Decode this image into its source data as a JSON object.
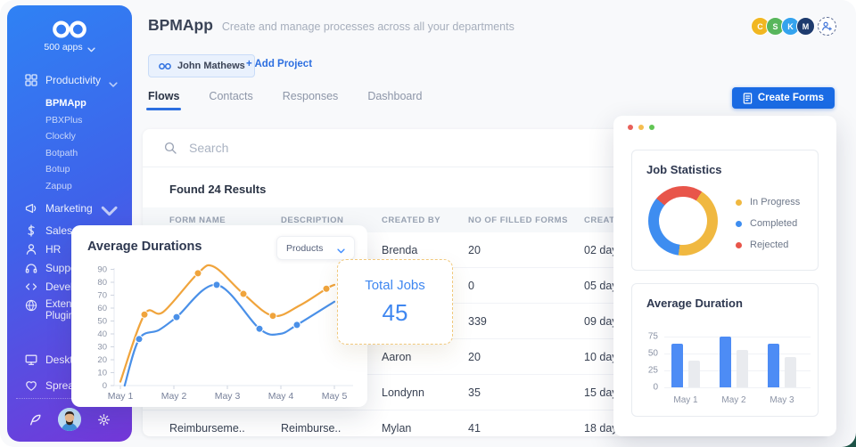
{
  "window": {
    "header": {
      "title": "BPMApp",
      "subtitle": "Create and manage processes across all your departments"
    },
    "members": {
      "avatars": [
        {
          "initial": "C",
          "color": "#f1b722"
        },
        {
          "initial": "S",
          "color": "#58b65c"
        },
        {
          "initial": "K",
          "color": "#34a3ee"
        },
        {
          "initial": "M",
          "color": "#1e3b6e"
        }
      ]
    },
    "owner_chip": {
      "label": "John Mathews"
    },
    "add_project_label": "+ Add Project",
    "tabs": [
      {
        "label": "Flows",
        "active": true
      },
      {
        "label": "Contacts",
        "active": false
      },
      {
        "label": "Responses",
        "active": false
      },
      {
        "label": "Dashboard",
        "active": false
      }
    ],
    "create_forms_label": "Create Forms"
  },
  "sidebar": {
    "apps_label": "500 apps",
    "items": [
      {
        "label": "Productivity",
        "icon": "productivity-icon",
        "chevron": true,
        "children": [
          {
            "label": "BPMApp",
            "active": true
          },
          {
            "label": "PBXPlus",
            "active": false
          },
          {
            "label": "Clockly",
            "active": false
          },
          {
            "label": "Botpath",
            "active": false
          },
          {
            "label": "Botup",
            "active": false
          },
          {
            "label": "Zapup",
            "active": false
          }
        ]
      },
      {
        "label": "Marketing",
        "icon": "marketing-icon",
        "chevron": true
      },
      {
        "label": "Sales",
        "icon": "sales-icon"
      },
      {
        "label": "HR",
        "icon": "hr-icon"
      },
      {
        "label": "Support",
        "icon": "support-icon"
      },
      {
        "label": "Developers",
        "icon": "developers-icon"
      },
      {
        "label": "Extensions Plugins",
        "icon": "extensions-icon",
        "two_line": true
      },
      {
        "label": "Desktop",
        "icon": "desktop-icon",
        "gap": "large"
      },
      {
        "label": "Spreadsheet",
        "icon": "spreadsheet-icon",
        "gap": "small"
      }
    ]
  },
  "search": {
    "placeholder": "Search"
  },
  "results_title": "Found 24 Results",
  "table": {
    "columns": [
      "FORM NAME",
      "DESCRIPTION",
      "CREATED BY",
      "NO OF FILLED FORMS",
      "CREATED"
    ],
    "rows": [
      {
        "form_name": "",
        "description": "",
        "created_by": "Brenda",
        "filled_forms": "20",
        "created": "02 days"
      },
      {
        "form_name": "",
        "description": "",
        "created_by": "",
        "filled_forms": "0",
        "created": "05 days"
      },
      {
        "form_name": "",
        "description": "",
        "created_by": "",
        "filled_forms": "339",
        "created": "09 days"
      },
      {
        "form_name": "",
        "description": "",
        "created_by": "Aaron",
        "filled_forms": "20",
        "created": "10 days"
      },
      {
        "form_name": "",
        "description": "",
        "created_by": "Londynn",
        "filled_forms": "35",
        "created": "15 days"
      },
      {
        "form_name": "Reimburseme..",
        "description": "Reimburse..",
        "created_by": "Mylan",
        "filled_forms": "41",
        "created": "18 days"
      }
    ]
  },
  "total_jobs": {
    "label": "Total Jobs",
    "value": "45"
  },
  "chart_data": [
    {
      "type": "line",
      "title": "Average Durations",
      "filter_label": "Products",
      "x_labels": [
        "May 1",
        "May 2",
        "May 3",
        "May 4",
        "May 5"
      ],
      "yticks": [
        0,
        10,
        20,
        30,
        40,
        50,
        60,
        70,
        80,
        90
      ],
      "ylim": [
        0,
        90
      ],
      "xlabel": "",
      "ylabel": "",
      "grid": false,
      "series": [
        {
          "name": "orange",
          "color": "#f0a43c",
          "points": [
            [
              1,
              3,
              0
            ],
            [
              1.45,
              55,
              1
            ],
            [
              1.8,
              57,
              0
            ],
            [
              2.45,
              87,
              1
            ],
            [
              2.75,
              92,
              0
            ],
            [
              3.3,
              71,
              1
            ],
            [
              3.85,
              54,
              1
            ],
            [
              4.35,
              62,
              0
            ],
            [
              4.85,
              75,
              1
            ],
            [
              5,
              78,
              0
            ]
          ]
        },
        {
          "name": "blue",
          "color": "#4a90e8",
          "points": [
            [
              1.08,
              0,
              0
            ],
            [
              1.35,
              36,
              1
            ],
            [
              1.72,
              43,
              0
            ],
            [
              2.05,
              53,
              1
            ],
            [
              2.8,
              78,
              1
            ],
            [
              3.6,
              44,
              1
            ],
            [
              3.98,
              40,
              0
            ],
            [
              4.3,
              47,
              1
            ],
            [
              5,
              65,
              0
            ]
          ]
        }
      ]
    },
    {
      "type": "pie",
      "title": "Job Statistics",
      "donut": true,
      "start_angle": -50,
      "segments": [
        {
          "label": "Rejected",
          "value": 23,
          "color": "#e8554a"
        },
        {
          "label": "In Progress",
          "value": 43,
          "color": "#f0b840"
        },
        {
          "label": "Completed",
          "value": 34,
          "color": "#3e8df0"
        }
      ],
      "legend": [
        {
          "label": "In Progress",
          "color": "#f0b840"
        },
        {
          "label": "Completed",
          "color": "#3e8df0"
        },
        {
          "label": "Rejected",
          "color": "#e8554a"
        }
      ],
      "legend_position": "right"
    },
    {
      "type": "bar",
      "title": "Average Duration",
      "categories": [
        "May 1",
        "May 2",
        "May 3"
      ],
      "yticks": [
        0,
        25,
        50,
        75
      ],
      "ylim": [
        0,
        75
      ],
      "xlabel": "",
      "ylabel": "",
      "grid": true,
      "series": [
        {
          "name": "primary",
          "color": "#4d8cf5",
          "values": [
            65,
            75,
            65
          ]
        },
        {
          "name": "secondary",
          "color": "#e9ebef",
          "values": [
            40,
            55,
            45
          ]
        }
      ]
    }
  ],
  "window_controls": [
    "#e8605a",
    "#f5bd4f",
    "#61c554"
  ]
}
